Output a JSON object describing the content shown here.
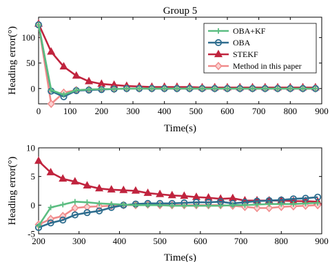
{
  "chart_data": [
    {
      "type": "line",
      "title": "Group 5",
      "xlabel": "Time(s)",
      "ylabel": "Heading error(°)",
      "xlim": [
        0,
        900
      ],
      "ylim": [
        -30,
        140
      ],
      "xticks": [
        0,
        100,
        200,
        300,
        400,
        500,
        600,
        700,
        800,
        900
      ],
      "yticks": [
        0,
        50,
        100
      ],
      "legend": "top-right",
      "series": [
        {
          "name": "OBA+KF",
          "color": "#5bbd81",
          "marker": "plus",
          "x": [
            0,
            40,
            80,
            120,
            160,
            200,
            240,
            280,
            320,
            360,
            400,
            440,
            480,
            520,
            560,
            600,
            640,
            680,
            720,
            760,
            800,
            840,
            880
          ],
          "y": [
            125,
            -3,
            -12,
            -3,
            -2,
            -1,
            -1,
            0,
            0,
            0,
            0,
            0,
            0,
            0,
            0,
            0,
            0,
            0,
            0,
            0,
            0,
            0,
            0
          ]
        },
        {
          "name": "OBA",
          "color": "#2e6d8e",
          "marker": "circle",
          "x": [
            0,
            40,
            80,
            120,
            160,
            200,
            240,
            280,
            320,
            360,
            400,
            440,
            480,
            520,
            560,
            600,
            640,
            680,
            720,
            760,
            800,
            840,
            880
          ],
          "y": [
            125,
            -5,
            -16,
            -4,
            -3,
            -2,
            -1,
            0,
            0,
            0,
            0,
            0,
            0,
            0,
            0,
            0,
            0,
            0,
            0,
            0,
            0,
            0,
            0
          ]
        },
        {
          "name": "STEKF",
          "color": "#c0243e",
          "marker": "triangle",
          "x": [
            0,
            40,
            80,
            120,
            160,
            200,
            240,
            280,
            320,
            360,
            400,
            440,
            480,
            520,
            560,
            600,
            640,
            680,
            720,
            760,
            800,
            840,
            880
          ],
          "y": [
            127,
            72,
            43,
            25,
            14,
            9,
            7,
            5,
            4,
            3,
            3,
            3,
            3,
            2,
            2,
            2,
            2,
            2,
            2,
            2,
            2,
            2,
            2
          ]
        },
        {
          "name": "Method in this paper",
          "color": "#f08a8a",
          "marker": "diamond",
          "x": [
            0,
            40,
            80,
            120,
            160,
            200,
            240,
            280,
            320,
            360,
            400,
            440,
            480,
            520,
            560,
            600,
            640,
            680,
            720,
            760,
            800,
            840,
            880
          ],
          "y": [
            125,
            -30,
            -8,
            -3,
            -2,
            -1,
            -1,
            0,
            0,
            0,
            0,
            0,
            0,
            0,
            0,
            0,
            0,
            0,
            0,
            0,
            0,
            0,
            0
          ]
        }
      ]
    },
    {
      "type": "line",
      "title": "",
      "xlabel": "Time(s)",
      "ylabel": "Heading error(°)",
      "xlim": [
        200,
        900
      ],
      "ylim": [
        -5,
        10
      ],
      "xticks": [
        200,
        300,
        400,
        500,
        600,
        700,
        800,
        900
      ],
      "yticks": [
        -5,
        0,
        5,
        10
      ],
      "series": [
        {
          "name": "OBA+KF",
          "color": "#5bbd81",
          "marker": "plus",
          "x": [
            200,
            230,
            260,
            290,
            320,
            350,
            380,
            410,
            440,
            470,
            500,
            530,
            560,
            590,
            620,
            650,
            680,
            710,
            740,
            770,
            800,
            830,
            860,
            890
          ],
          "y": [
            -3.6,
            -0.4,
            0.1,
            0.6,
            0.5,
            0.3,
            0.2,
            0.1,
            0.0,
            0.0,
            0.0,
            -0.1,
            -0.1,
            -0.1,
            -0.1,
            -0.1,
            0.0,
            0.0,
            0.1,
            0.2,
            0.2,
            0.2,
            0.3,
            0.4
          ]
        },
        {
          "name": "OBA",
          "color": "#2e6d8e",
          "marker": "circle",
          "x": [
            200,
            230,
            260,
            290,
            320,
            350,
            380,
            410,
            440,
            470,
            500,
            530,
            560,
            590,
            620,
            650,
            680,
            710,
            740,
            770,
            800,
            830,
            860,
            890
          ],
          "y": [
            -3.9,
            -3.1,
            -2.6,
            -1.7,
            -1.3,
            -1.0,
            -0.4,
            0.0,
            0.2,
            0.3,
            0.3,
            0.3,
            0.4,
            0.5,
            0.5,
            0.6,
            0.3,
            0.5,
            0.7,
            0.8,
            0.9,
            1.1,
            1.2,
            1.4
          ]
        },
        {
          "name": "STEKF",
          "color": "#c0243e",
          "marker": "triangle",
          "x": [
            200,
            230,
            260,
            290,
            320,
            350,
            380,
            410,
            440,
            470,
            500,
            530,
            560,
            590,
            620,
            650,
            680,
            710,
            740,
            770,
            800,
            830,
            860,
            890
          ],
          "y": [
            7.7,
            5.7,
            4.6,
            4.1,
            3.4,
            2.9,
            2.7,
            2.6,
            2.5,
            2.1,
            1.9,
            1.7,
            1.6,
            1.4,
            1.3,
            1.1,
            1.2,
            0.8,
            0.8,
            0.8,
            0.8,
            0.7,
            0.7,
            0.6
          ]
        },
        {
          "name": "Method in this paper",
          "color": "#f08a8a",
          "marker": "diamond",
          "x": [
            200,
            230,
            260,
            290,
            320,
            350,
            380,
            410,
            440,
            470,
            500,
            530,
            560,
            590,
            620,
            650,
            680,
            710,
            740,
            770,
            800,
            830,
            860,
            890
          ],
          "y": [
            -3.4,
            -2.4,
            -1.9,
            -0.5,
            -0.3,
            -0.2,
            -0.1,
            0.0,
            0.0,
            0.1,
            0.0,
            0.0,
            0.0,
            0.0,
            0.0,
            0.0,
            -0.1,
            -0.3,
            -0.5,
            -0.5,
            -0.3,
            -0.2,
            -0.1,
            0.0
          ]
        }
      ]
    }
  ]
}
